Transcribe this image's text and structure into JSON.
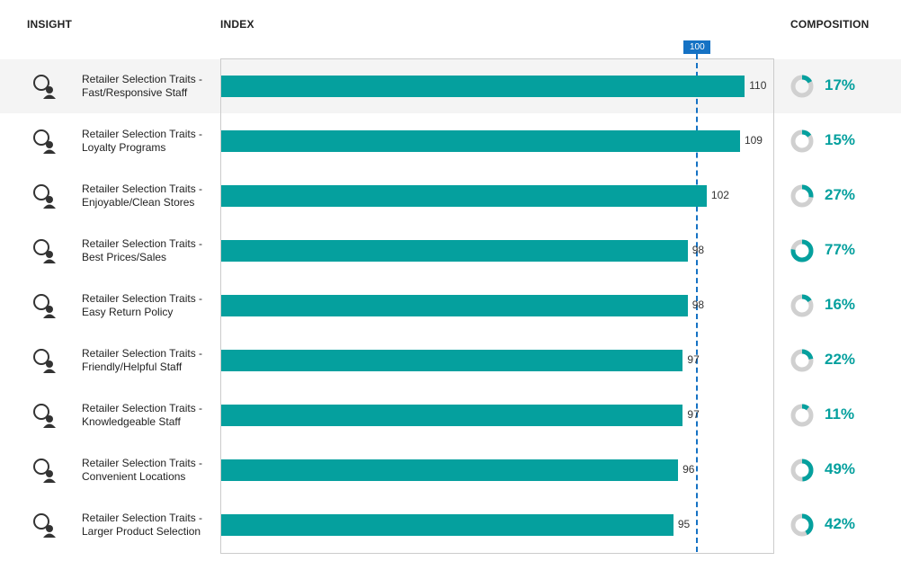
{
  "chart_data": {
    "type": "bar",
    "insight_header": "INSIGHT",
    "index_header": "INDEX",
    "composition_header": "COMPOSITION",
    "categories": [
      "Retailer Selection Traits - Fast/Responsive Staff",
      "Retailer Selection Traits - Loyalty Programs",
      "Retailer Selection Traits - Enjoyable/Clean Stores",
      "Retailer Selection Traits - Best Prices/Sales",
      "Retailer Selection Traits - Easy Return Policy",
      "Retailer Selection Traits - Friendly/Helpful Staff",
      "Retailer Selection Traits - Knowledgeable Staff",
      "Retailer Selection Traits - Convenient Locations",
      "Retailer Selection Traits - Larger Product Selection"
    ],
    "values": [
      110,
      109,
      102,
      98,
      98,
      97,
      97,
      96,
      95
    ],
    "color": "#05a09e",
    "xlim": [
      0,
      116
    ],
    "reference_line": 100,
    "reference_color": "#1572c4",
    "composition": {
      "values": [
        17,
        15,
        27,
        77,
        16,
        22,
        11,
        49,
        42
      ],
      "value_labels": [
        "17%",
        "15%",
        "27%",
        "77%",
        "16%",
        "22%",
        "11%",
        "49%",
        "42%"
      ],
      "color": "#05a09e",
      "track_color": "#d0d0d0"
    }
  }
}
